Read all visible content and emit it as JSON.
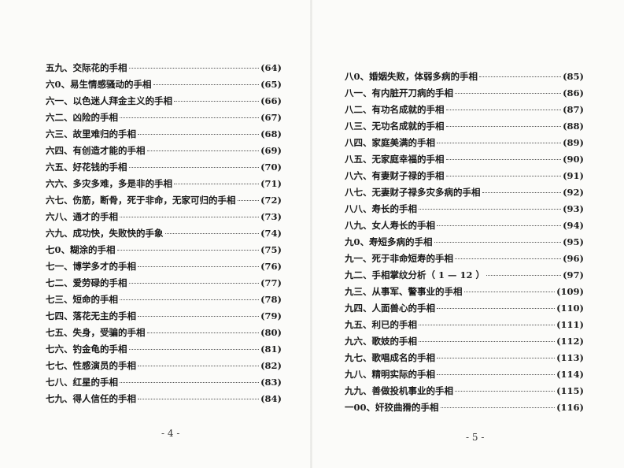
{
  "left_page": {
    "entries": [
      {
        "title": "五九、交际花的手相",
        "page": "(64)"
      },
      {
        "title": "六0、易生情感骚动的手相",
        "page": "(65)"
      },
      {
        "title": "六一、以色迷人拜金主义的手相",
        "page": "(66)"
      },
      {
        "title": "六二、凶险的手相",
        "page": "(67)"
      },
      {
        "title": "六三、故里难归的手相",
        "page": "(68)"
      },
      {
        "title": "六四、有创造才能的手相",
        "page": "(69)"
      },
      {
        "title": "六五、好花钱的手相",
        "page": "(70)"
      },
      {
        "title": "六六、多灾多难，多是非的手相",
        "page": "(71)"
      },
      {
        "title": "六七、伤筋，断骨，死于非命，无家可归的手相",
        "page": "(72)"
      },
      {
        "title": "六八、通才的手相",
        "page": "(73)"
      },
      {
        "title": "六九、成功快，失败快的手象",
        "page": "(74)"
      },
      {
        "title": "七0、糊涂的手相",
        "page": "(75)"
      },
      {
        "title": "七一、博学多才的手相",
        "page": "(76)"
      },
      {
        "title": "七二、爱劳碌的手相",
        "page": "(77)"
      },
      {
        "title": "七三、短命的手相",
        "page": "(78)"
      },
      {
        "title": "七四、落花无主的手相",
        "page": "(79)"
      },
      {
        "title": "七五、失身，受骗的手相",
        "page": "(80)"
      },
      {
        "title": "七六、钓金龟的手相",
        "page": "(81)"
      },
      {
        "title": "七七、性感演员的手相",
        "page": "(82)"
      },
      {
        "title": "七八、红星的手相",
        "page": "(83)"
      },
      {
        "title": "七九、得人信任的手相",
        "page": "(84)"
      }
    ],
    "page_number": "- 4 -"
  },
  "right_page": {
    "entries": [
      {
        "title": "八0、婚姻失败，体弱多病的手相",
        "page": "(85)"
      },
      {
        "title": "八一、有内脏开刀病的手相",
        "page": "(86)"
      },
      {
        "title": "八二、有功名成就的手相",
        "page": "(87)"
      },
      {
        "title": "八三、无功名成就的手相",
        "page": "(88)"
      },
      {
        "title": "八四、家庭美满的手相",
        "page": "(89)"
      },
      {
        "title": "八五、无家庭幸福的手相",
        "page": "(90)"
      },
      {
        "title": "八六、有妻财子禄的手相",
        "page": "(91)"
      },
      {
        "title": "八七、无妻财子禄多灾多病的手相",
        "page": "(92)"
      },
      {
        "title": "八八、寿长的手相",
        "page": "(93)"
      },
      {
        "title": "八九、女人寿长的手相",
        "page": "(94)"
      },
      {
        "title": "九0、寿短多病的手相",
        "page": "(95)"
      },
      {
        "title": "九一、死于非命短寿的手相",
        "page": "(96)"
      },
      {
        "title": "九二、手相掌纹分析（ 1 — 12 ）",
        "page": "(97)"
      },
      {
        "title": "九三、从事军、警事业的手相",
        "page": "(109)"
      },
      {
        "title": "九四、人面兽心的手相",
        "page": "(110)"
      },
      {
        "title": "九五、利已的手相",
        "page": "(111)"
      },
      {
        "title": "九六、歌妓的手相",
        "page": "(112)"
      },
      {
        "title": "九七、歌唱成名的手相",
        "page": "(113)"
      },
      {
        "title": "九八、精明实际的手相",
        "page": "(114)"
      },
      {
        "title": "九九、善做投机事业的手相",
        "page": "(115)"
      },
      {
        "title": "一00、奸狡曲猾的手相",
        "page": "(116)"
      }
    ],
    "page_number": "- 5 -"
  }
}
